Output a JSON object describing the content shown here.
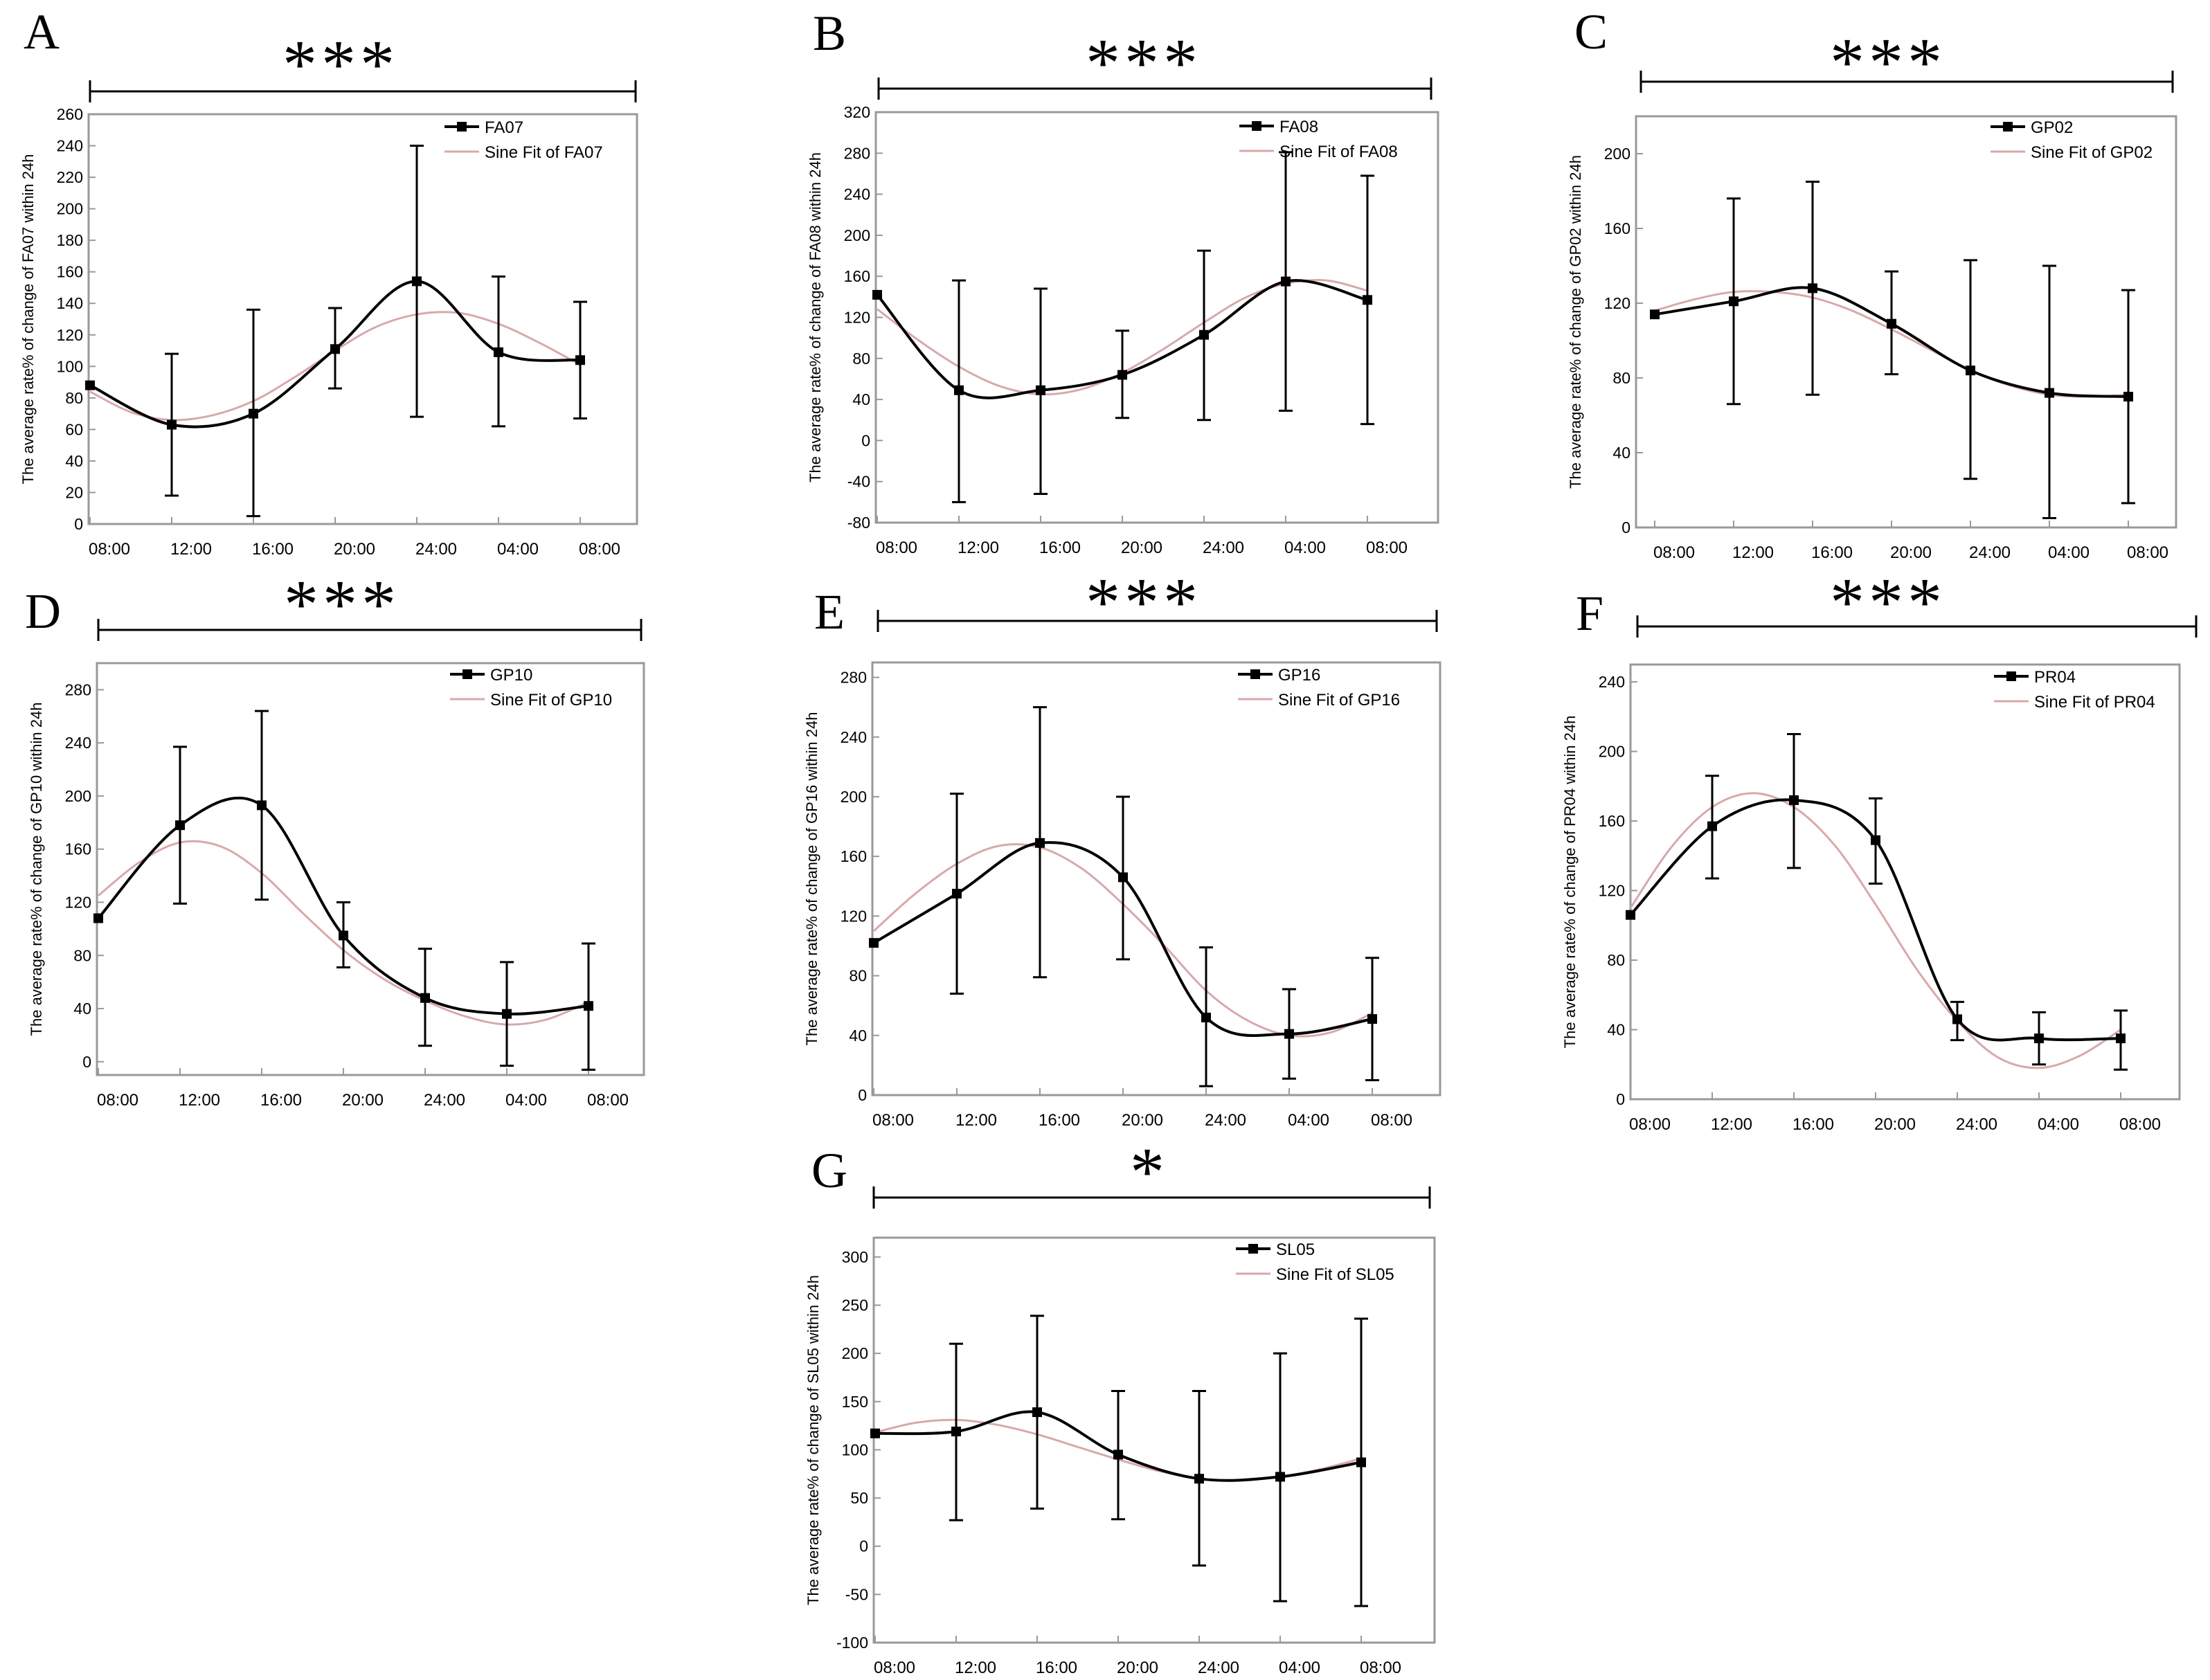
{
  "figure": {
    "time_labels": [
      "08:00",
      "12:00",
      "16:00",
      "20:00",
      "24:00",
      "04:00",
      "08:00"
    ],
    "colors": {
      "data_line": "#000000",
      "fit_line": "#d9a8aa",
      "frame": "#999999",
      "text": "#000000"
    }
  },
  "chart_data": [
    {
      "panel": "A",
      "type": "line",
      "significance": "***",
      "ylabel": "The average rate% of change of FA07 within 24h",
      "categories": [
        "08:00",
        "12:00",
        "16:00",
        "20:00",
        "24:00",
        "04:00",
        "08:00"
      ],
      "ylim": [
        0,
        260
      ],
      "yticks": [
        0,
        20,
        40,
        60,
        80,
        100,
        120,
        140,
        160,
        180,
        200,
        220,
        240,
        260
      ],
      "series": [
        {
          "name": "FA07",
          "x": [
            0,
            1,
            2,
            3,
            4,
            5,
            6
          ],
          "values": [
            88,
            63,
            70,
            111,
            154,
            109,
            104
          ],
          "err_low": [
            null,
            18,
            5,
            86,
            68,
            62,
            67
          ],
          "err_high": [
            null,
            108,
            136,
            137,
            240,
            157,
            141
          ]
        },
        {
          "name": "Sine Fit of FA07",
          "x": [
            0,
            0.5,
            1,
            1.5,
            2,
            2.5,
            3,
            3.5,
            4,
            4.5,
            5,
            5.5,
            6
          ],
          "values": [
            84,
            71,
            66,
            69,
            78,
            93,
            110,
            125,
            133,
            134,
            127,
            115,
            101
          ]
        }
      ]
    },
    {
      "panel": "B",
      "type": "line",
      "significance": "***",
      "ylabel": "The average rate% of change of FA08 within 24h",
      "categories": [
        "08:00",
        "12:00",
        "16:00",
        "20:00",
        "24:00",
        "04:00",
        "08:00"
      ],
      "ylim": [
        -80,
        320
      ],
      "yticks": [
        -80,
        -40,
        0,
        40,
        80,
        120,
        160,
        200,
        240,
        280,
        320
      ],
      "series": [
        {
          "name": "FA08",
          "x": [
            0,
            1,
            2,
            3,
            4,
            5,
            6
          ],
          "values": [
            142,
            49,
            49,
            64,
            103,
            155,
            137
          ],
          "err_low": [
            null,
            -60,
            -52,
            22,
            20,
            29,
            16
          ],
          "err_high": [
            null,
            156,
            148,
            107,
            185,
            281,
            258
          ]
        },
        {
          "name": "Sine Fit of FA08",
          "x": [
            0,
            0.5,
            1,
            1.5,
            2,
            2.5,
            3,
            3.5,
            4,
            4.5,
            5,
            5.5,
            6
          ],
          "values": [
            128,
            98,
            72,
            53,
            45,
            50,
            66,
            89,
            115,
            139,
            153,
            156,
            146
          ]
        }
      ]
    },
    {
      "panel": "C",
      "type": "line",
      "significance": "***",
      "ylabel": "The average rate% of change of GP02 within 24h",
      "categories": [
        "08:00",
        "12:00",
        "16:00",
        "20:00",
        "24:00",
        "04:00",
        "08:00"
      ],
      "ylim": [
        0,
        220
      ],
      "yticks": [
        0,
        40,
        80,
        120,
        160,
        200
      ],
      "series": [
        {
          "name": "GP02",
          "x": [
            0,
            1,
            2,
            3,
            4,
            5,
            6
          ],
          "values": [
            114,
            121,
            128,
            109,
            84,
            72,
            70
          ],
          "err_low": [
            null,
            66,
            71,
            82,
            26,
            5,
            13
          ],
          "err_high": [
            null,
            176,
            185,
            137,
            143,
            140,
            127
          ]
        },
        {
          "name": "Sine Fit of GP02",
          "x": [
            0,
            0.5,
            1,
            1.5,
            2,
            2.5,
            3,
            3.5,
            4,
            4.5,
            5,
            5.5,
            6
          ],
          "values": [
            116,
            122,
            126,
            126,
            123,
            116,
            106,
            95,
            84,
            76,
            71,
            70,
            71
          ]
        }
      ]
    },
    {
      "panel": "D",
      "type": "line",
      "significance": "***",
      "ylabel": "The average rate% of change of GP10 within 24h",
      "categories": [
        "08:00",
        "12:00",
        "16:00",
        "20:00",
        "24:00",
        "04:00",
        "08:00"
      ],
      "ylim": [
        -10,
        300
      ],
      "yticks": [
        0,
        40,
        80,
        120,
        160,
        200,
        240,
        280
      ],
      "series": [
        {
          "name": "GP10",
          "x": [
            0,
            1,
            2,
            3,
            4,
            5,
            6
          ],
          "values": [
            108,
            178,
            193,
            95,
            48,
            36,
            42
          ],
          "err_low": [
            null,
            119,
            122,
            71,
            12,
            -3,
            -6
          ],
          "err_high": [
            null,
            237,
            264,
            120,
            85,
            75,
            89
          ]
        },
        {
          "name": "Sine Fit of GP10",
          "x": [
            0,
            0.5,
            1,
            1.5,
            2,
            2.5,
            3,
            3.5,
            4,
            4.5,
            5,
            5.5,
            6
          ],
          "values": [
            125,
            150,
            165,
            162,
            142,
            112,
            84,
            62,
            46,
            34,
            28,
            32,
            45
          ]
        }
      ]
    },
    {
      "panel": "E",
      "type": "line",
      "significance": "***",
      "ylabel": "The average rate% of change of GP16 within 24h",
      "categories": [
        "08:00",
        "12:00",
        "16:00",
        "20:00",
        "24:00",
        "04:00",
        "08:00"
      ],
      "ylim": [
        0,
        290
      ],
      "yticks": [
        0,
        40,
        80,
        120,
        160,
        200,
        240,
        280
      ],
      "series": [
        {
          "name": "GP16",
          "x": [
            0,
            1,
            2,
            3,
            4,
            5,
            6
          ],
          "values": [
            102,
            135,
            169,
            146,
            52,
            41,
            51
          ],
          "err_low": [
            null,
            68,
            79,
            91,
            6,
            11,
            10
          ],
          "err_high": [
            null,
            202,
            260,
            200,
            99,
            71,
            92
          ]
        },
        {
          "name": "Sine Fit of GP16",
          "x": [
            0,
            0.5,
            1,
            1.5,
            2,
            2.5,
            3,
            3.5,
            4,
            4.5,
            5,
            5.5,
            6
          ],
          "values": [
            110,
            135,
            155,
            167,
            166,
            152,
            128,
            100,
            70,
            50,
            40,
            42,
            55
          ]
        }
      ]
    },
    {
      "panel": "F",
      "type": "line",
      "significance": "***",
      "ylabel": "The average rate% of change of PR04 within 24h",
      "categories": [
        "08:00",
        "12:00",
        "16:00",
        "20:00",
        "24:00",
        "04:00",
        "08:00"
      ],
      "ylim": [
        0,
        250
      ],
      "yticks": [
        0,
        40,
        80,
        120,
        160,
        200,
        240
      ],
      "series": [
        {
          "name": "PR04",
          "x": [
            0,
            1,
            2,
            3,
            4,
            5,
            6
          ],
          "values": [
            106,
            157,
            172,
            149,
            46,
            35,
            35
          ],
          "err_low": [
            null,
            127,
            133,
            124,
            34,
            20,
            17
          ],
          "err_high": [
            null,
            186,
            210,
            173,
            56,
            50,
            51
          ]
        },
        {
          "name": "Sine Fit of PR04",
          "x": [
            0,
            0.5,
            1,
            1.5,
            2,
            2.5,
            3,
            3.5,
            4,
            4.5,
            5,
            5.5,
            6
          ],
          "values": [
            110,
            145,
            168,
            176,
            168,
            146,
            112,
            75,
            45,
            24,
            18,
            25,
            40
          ]
        }
      ]
    },
    {
      "panel": "G",
      "type": "line",
      "significance": "*",
      "ylabel": "The average rate% of change of SL05 within 24h",
      "categories": [
        "08:00",
        "12:00",
        "16:00",
        "20:00",
        "24:00",
        "04:00",
        "08:00"
      ],
      "ylim": [
        -100,
        320
      ],
      "yticks": [
        -100,
        -50,
        0,
        50,
        100,
        150,
        200,
        250,
        300
      ],
      "series": [
        {
          "name": "SL05",
          "x": [
            0,
            1,
            2,
            3,
            4,
            5,
            6
          ],
          "values": [
            117,
            119,
            139,
            95,
            70,
            72,
            87
          ],
          "err_low": [
            null,
            27,
            39,
            28,
            -20,
            -57,
            -62
          ],
          "err_high": [
            null,
            210,
            239,
            161,
            161,
            200,
            236
          ]
        },
        {
          "name": "Sine Fit of SL05",
          "x": [
            0,
            0.5,
            1,
            1.5,
            2,
            2.5,
            3,
            3.5,
            4,
            4.5,
            5,
            5.5,
            6
          ],
          "values": [
            118,
            128,
            131,
            126,
            116,
            103,
            90,
            78,
            70,
            68,
            72,
            80,
            91
          ]
        }
      ]
    }
  ]
}
